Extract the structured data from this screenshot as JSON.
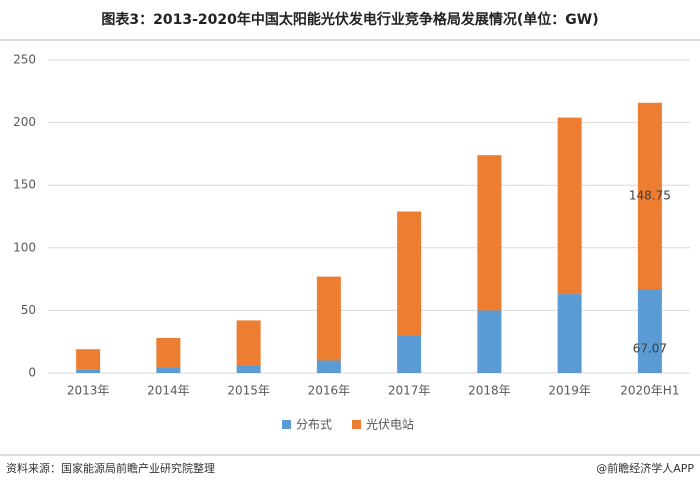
{
  "chart_data": {
    "type": "stacked_bar",
    "title": "图表3：2013-2020年中国太阳能光伏发电行业竞争格局发展情况(单位：GW)",
    "source": "资料来源：国家能源局前瞻产业研究院整理",
    "credit": "@前瞻经济学人APP",
    "categories": [
      "2013年",
      "2014年",
      "2015年",
      "2016年",
      "2017年",
      "2018年",
      "2019年",
      "2020年H1"
    ],
    "series": [
      {
        "name": "分布式",
        "color": "#5b9bd5",
        "values": [
          3,
          4,
          6,
          10,
          30,
          50,
          63,
          67.07
        ],
        "value_labels": [
          null,
          null,
          null,
          null,
          null,
          null,
          null,
          "67.07"
        ]
      },
      {
        "name": "光伏电站",
        "color": "#ed7d31",
        "values": [
          16,
          24,
          36,
          67,
          99,
          124,
          141,
          148.75
        ],
        "value_labels": [
          null,
          null,
          null,
          null,
          null,
          null,
          null,
          "148.75"
        ]
      }
    ],
    "ylim": [
      0,
      250
    ],
    "yticks": [
      0,
      50,
      100,
      150,
      200,
      250
    ],
    "grid": true,
    "legend": "bottom"
  }
}
